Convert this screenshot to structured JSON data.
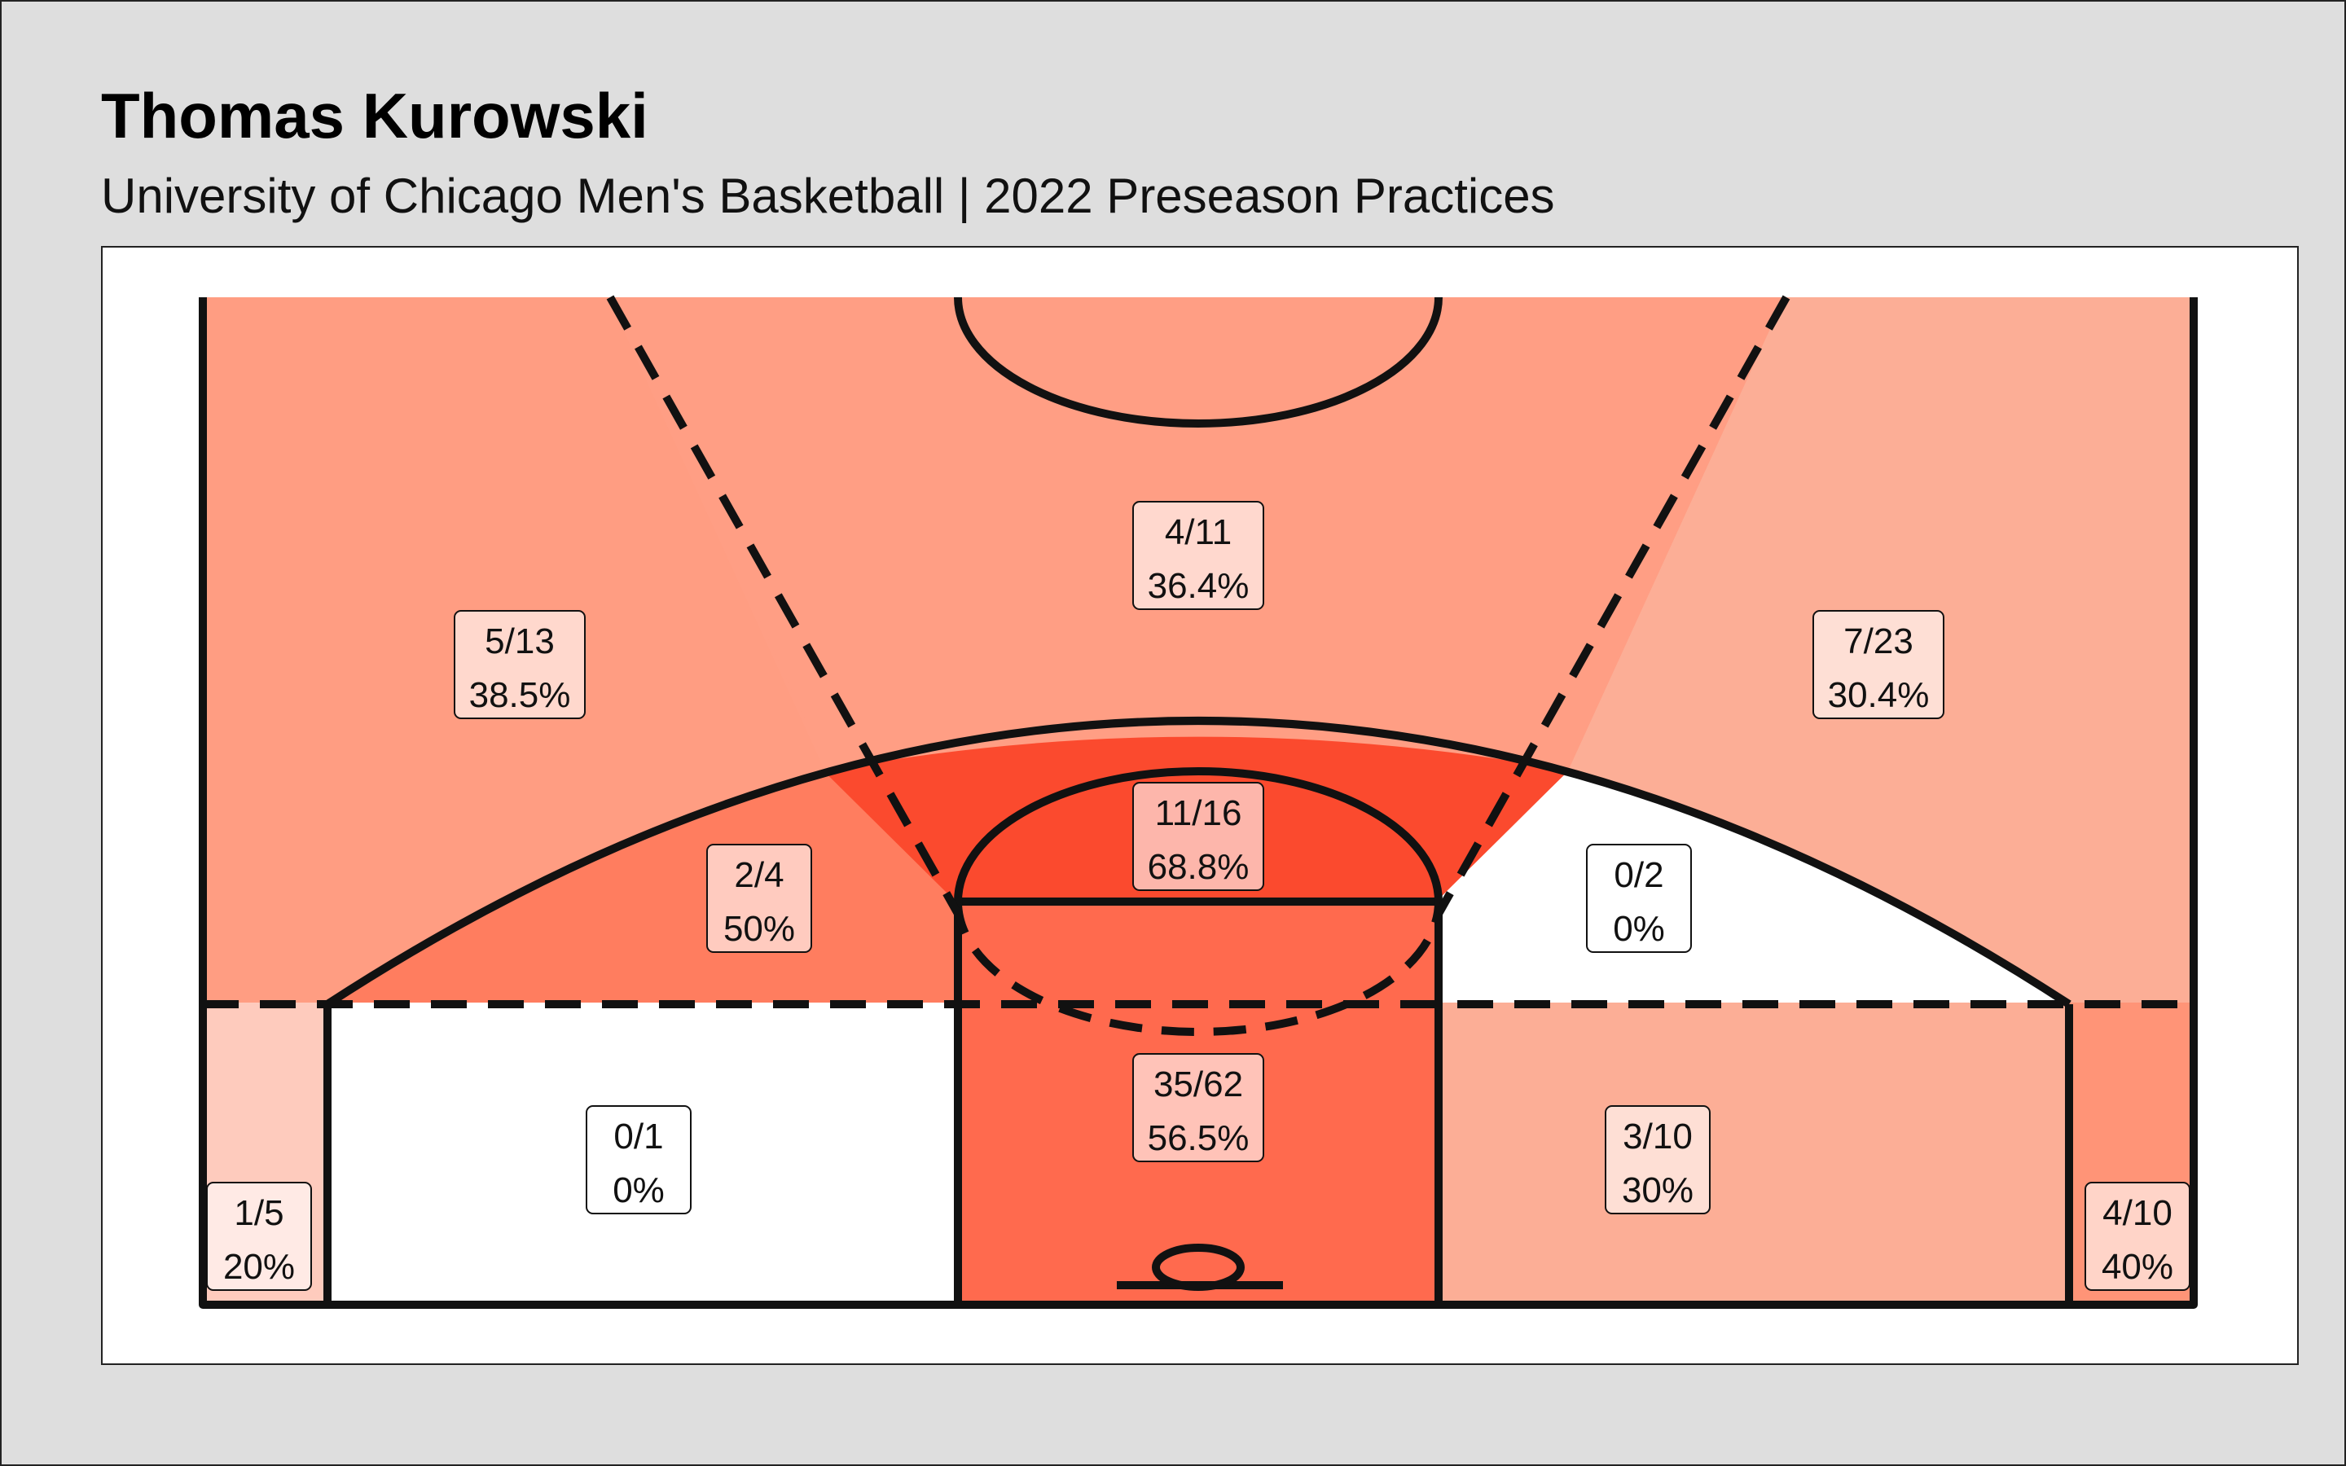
{
  "title": "Thomas Kurowski",
  "subtitle": "University of Chicago Men's Basketball | 2022 Preseason Practices",
  "chart_data": {
    "type": "heatmap",
    "title": "Thomas Kurowski",
    "subtitle": "University of Chicago Men's Basketball | 2022 Preseason Practices",
    "color_scale": {
      "low": "#ffffff",
      "high": "#fb4a2e"
    },
    "zones": [
      {
        "id": "left-wing-three",
        "made": 5,
        "attempts": 13,
        "label": "5/13",
        "pct_label": "38.5%",
        "fill": "#ff9d82"
      },
      {
        "id": "top-three",
        "made": 4,
        "attempts": 11,
        "label": "4/11",
        "pct_label": "36.4%",
        "fill": "#ff9e84"
      },
      {
        "id": "right-wing-three",
        "made": 7,
        "attempts": 23,
        "label": "7/23",
        "pct_label": "30.4%",
        "fill": "#fcae96"
      },
      {
        "id": "left-midrange",
        "made": 2,
        "attempts": 4,
        "label": "2/4",
        "pct_label": "50%",
        "fill": "#ff7d5f"
      },
      {
        "id": "top-paint",
        "made": 11,
        "attempts": 16,
        "label": "11/16",
        "pct_label": "68.8%",
        "fill": "#fb4a2e"
      },
      {
        "id": "right-midrange",
        "made": 0,
        "attempts": 2,
        "label": "0/2",
        "pct_label": "0%",
        "fill": "#ffffff"
      },
      {
        "id": "left-baseline",
        "made": 0,
        "attempts": 1,
        "label": "0/1",
        "pct_label": "0%",
        "fill": "#ffffff"
      },
      {
        "id": "paint",
        "made": 35,
        "attempts": 62,
        "label": "35/62",
        "pct_label": "56.5%",
        "fill": "#ff6a4e"
      },
      {
        "id": "right-baseline",
        "made": 3,
        "attempts": 10,
        "label": "3/10",
        "pct_label": "30%",
        "fill": "#fcae96"
      },
      {
        "id": "left-corner-three",
        "made": 1,
        "attempts": 5,
        "label": "1/5",
        "pct_label": "20%",
        "fill": "#fecbbd"
      },
      {
        "id": "right-corner-three",
        "made": 4,
        "attempts": 10,
        "label": "4/10",
        "pct_label": "40%",
        "fill": "#ff9477"
      }
    ]
  }
}
